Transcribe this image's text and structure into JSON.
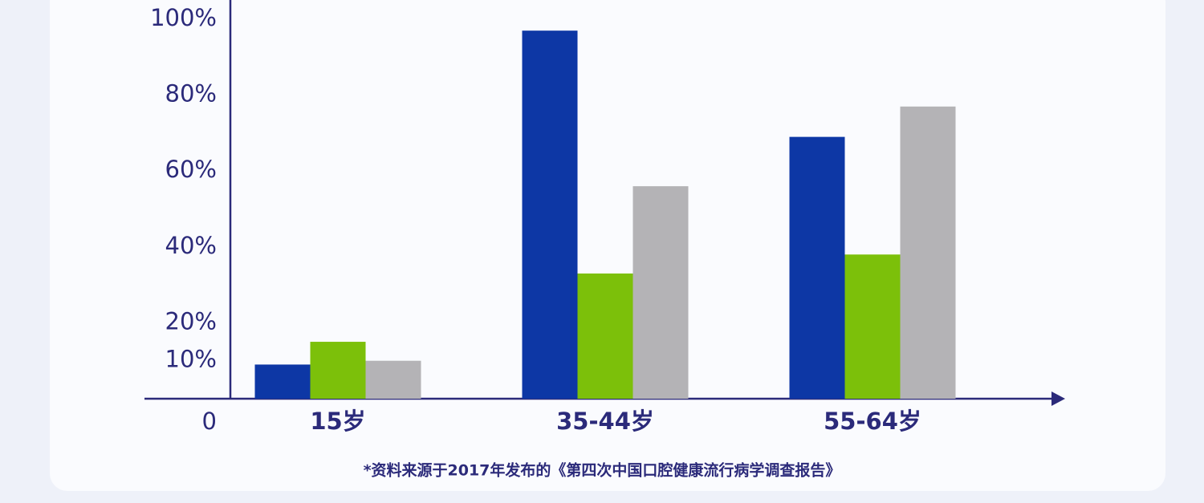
{
  "chart_data": {
    "type": "bar",
    "categories": [
      "15岁",
      "35-44岁",
      "55-64岁"
    ],
    "series": [
      {
        "color": "#0d37a5",
        "values": [
          9,
          97,
          69
        ]
      },
      {
        "color": "#7cc00a",
        "values": [
          15,
          33,
          38
        ]
      },
      {
        "color": "#b4b3b6",
        "values": [
          10,
          56,
          77
        ]
      }
    ],
    "ylim": [
      0,
      100
    ],
    "yticks": [
      0,
      {
        "value": 10,
        "label": "10%"
      },
      {
        "value": 20,
        "label": "20%"
      },
      {
        "value": 40,
        "label": "40%"
      },
      {
        "value": 60,
        "label": "60%"
      },
      {
        "value": 80,
        "label": "80%"
      },
      {
        "value": 100,
        "label": "100%"
      }
    ],
    "footnote": "*资料来源于2017年发布的《第四次中国口腔健康流行病学调查报告》"
  }
}
